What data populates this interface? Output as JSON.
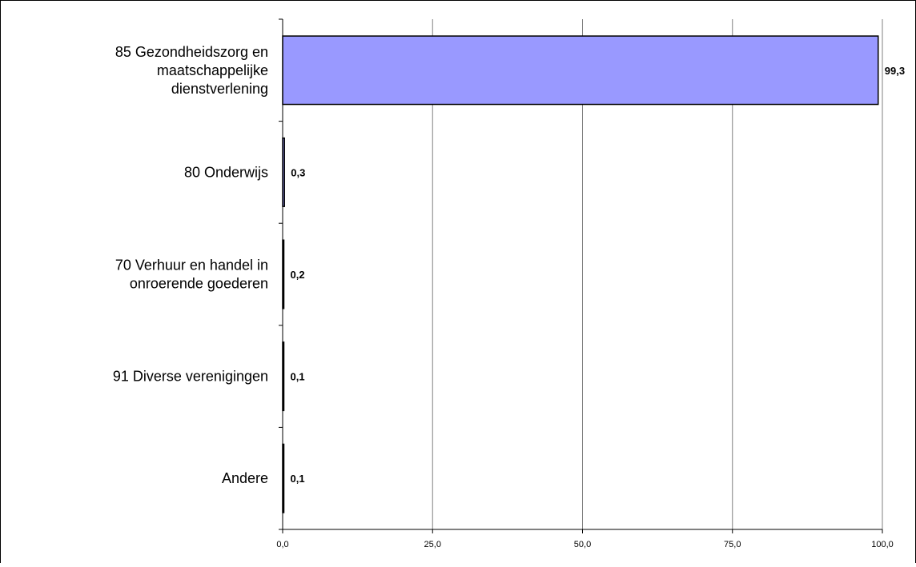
{
  "chart_data": {
    "type": "bar",
    "orientation": "horizontal",
    "categories": [
      [
        "85 Gezondheidszorg en",
        "maatschappelijke",
        "dienstverlening"
      ],
      [
        "80 Onderwijs"
      ],
      [
        "70 Verhuur en handel in",
        "onroerende goederen"
      ],
      [
        "91 Diverse verenigingen"
      ],
      [
        "Andere"
      ]
    ],
    "values": [
      99.3,
      0.3,
      0.2,
      0.1,
      0.1
    ],
    "value_labels": [
      "99,3",
      "0,3",
      "0,2",
      "0,1",
      "0,1"
    ],
    "xlim": [
      0,
      100
    ],
    "x_ticks": [
      0,
      25,
      50,
      75,
      100
    ],
    "x_tick_labels": [
      "0,0",
      "25,0",
      "50,0",
      "75,0",
      "100,0"
    ],
    "grid": "vertical",
    "legend": "none",
    "title": "",
    "xlabel": "",
    "ylabel": "",
    "colors": {
      "bar_fill": "#9999ff",
      "bar_stroke": "#000000",
      "grid": "#808080",
      "axis": "#000000"
    }
  }
}
